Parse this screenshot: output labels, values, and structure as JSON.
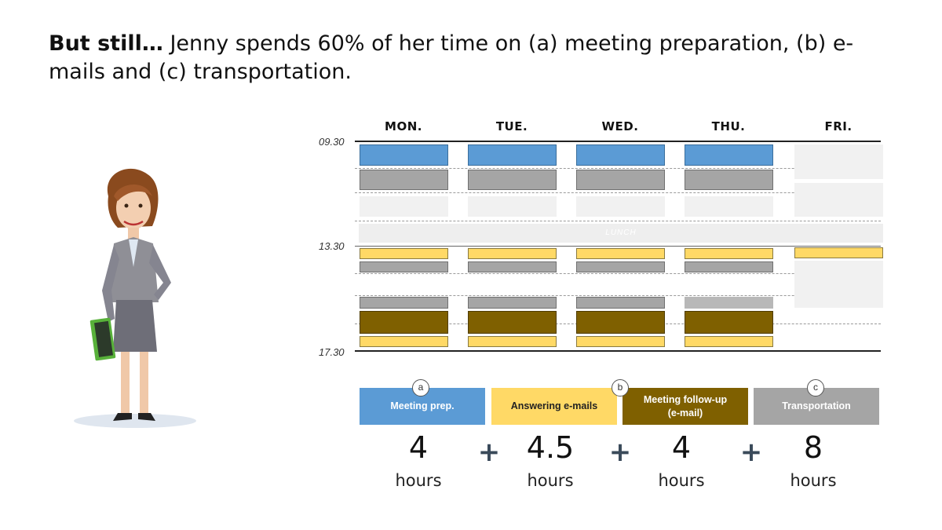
{
  "title": {
    "bold": "But still…",
    "rest": " Jenny spends 60% of her time on (a) meeting preparation, (b) e-mails and (c) transportation."
  },
  "schedule": {
    "days": [
      "MON.",
      "TUE.",
      "WED.",
      "THU.",
      "FRI."
    ],
    "times": [
      "09.30",
      "13.30",
      "17.30"
    ],
    "lunch_label": "LUNCH"
  },
  "legend": [
    {
      "badge": "a",
      "label": "Meeting prep.",
      "color": "#5b9bd5"
    },
    {
      "badge": "",
      "label": "Answering e-mails",
      "color": "#ffd966"
    },
    {
      "badge": "b",
      "label_line1": "Meeting follow-up",
      "label_line2": "(e-mail)",
      "color": "#7f6000"
    },
    {
      "badge": "c",
      "label": "Transportation",
      "color": "#a5a5a5"
    }
  ],
  "totals": [
    {
      "value": "4",
      "unit": "hours"
    },
    {
      "value": "4.5",
      "unit": "hours"
    },
    {
      "value": "4",
      "unit": "hours"
    },
    {
      "value": "8",
      "unit": "hours"
    }
  ],
  "operator": "+",
  "colors": {
    "meeting_prep": "#5b9bd5",
    "emails": "#ffd966",
    "follow_up": "#7f6000",
    "transportation": "#a5a5a5"
  }
}
